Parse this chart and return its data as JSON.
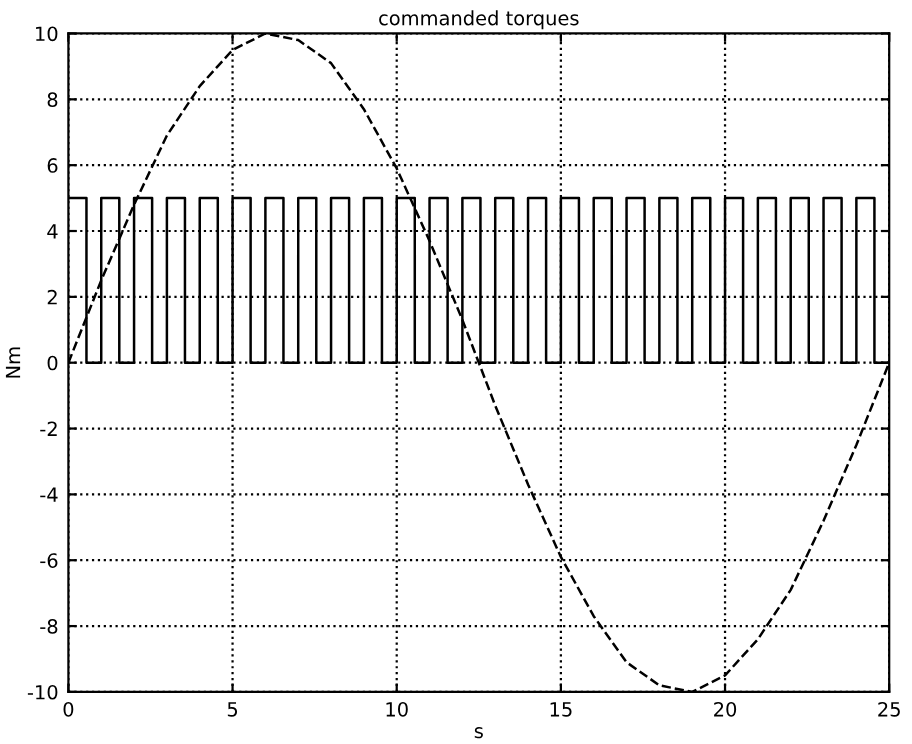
{
  "chart_data": {
    "type": "line",
    "title": "commanded torques",
    "xlabel": "s",
    "ylabel": "Nm",
    "xlim": [
      0,
      25
    ],
    "ylim": [
      -10,
      10
    ],
    "xticks": [
      0,
      5,
      10,
      15,
      20,
      25
    ],
    "yticks": [
      -10,
      -8,
      -6,
      -4,
      -2,
      0,
      2,
      4,
      6,
      8,
      10
    ],
    "grid": true,
    "legend": false,
    "series": [
      {
        "type": "step",
        "color": "#000000",
        "line_style": "solid",
        "x": [
          0,
          0.55,
          1,
          1.55,
          2,
          2.55,
          3,
          3.55,
          4,
          4.55,
          5,
          5.55,
          6,
          6.55,
          7,
          7.55,
          8,
          8.55,
          9,
          9.55,
          10,
          10.55,
          11,
          11.55,
          12,
          12.55,
          13,
          13.55,
          14,
          14.55,
          15,
          15.55,
          16,
          16.55,
          17,
          17.55,
          18,
          18.55,
          19,
          19.55,
          20,
          20.55,
          21,
          21.55,
          22,
          22.55,
          23,
          23.55,
          24,
          24.55,
          25
        ],
        "values": [
          5,
          0,
          5,
          0,
          5,
          0,
          5,
          0,
          5,
          0,
          5,
          0,
          5,
          0,
          5,
          0,
          5,
          0,
          5,
          0,
          5,
          0,
          5,
          0,
          5,
          0,
          5,
          0,
          5,
          0,
          5,
          0,
          5,
          0,
          5,
          0,
          5,
          0,
          5,
          0,
          5,
          0,
          5,
          0,
          5,
          0,
          5,
          0,
          5,
          0,
          0
        ]
      },
      {
        "color": "#000000",
        "line_style": "dashed",
        "x": [
          0,
          1,
          2,
          3,
          4,
          5,
          6,
          7,
          8,
          9,
          10,
          11,
          12,
          13,
          14,
          15,
          16,
          17,
          18,
          19,
          20,
          21,
          22,
          23,
          24,
          25
        ],
        "values": [
          0,
          2.5,
          4.8,
          6.9,
          8.4,
          9.5,
          10.0,
          9.8,
          9.1,
          7.7,
          5.9,
          3.7,
          1.3,
          -1.3,
          -3.7,
          -5.9,
          -7.7,
          -9.1,
          -9.8,
          -10.0,
          -9.5,
          -8.4,
          -6.9,
          -4.8,
          -2.5,
          0
        ]
      }
    ]
  }
}
